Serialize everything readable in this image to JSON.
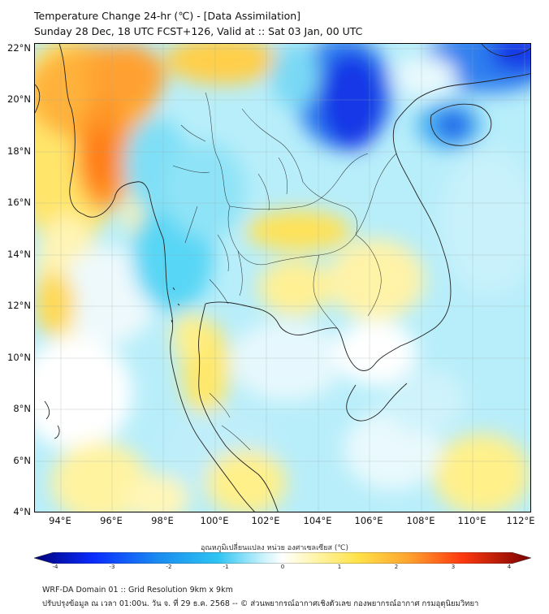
{
  "header": {
    "title": "Temperature Change 24-hr (℃) - [Data Assimilation]",
    "subtitle": "Sunday 28 Dec, 18 UTC FCST+126, Valid at :: Sat 03 Jan, 00 UTC"
  },
  "axes": {
    "lat_labels": [
      "22°N",
      "20°N",
      "18°N",
      "16°N",
      "14°N",
      "12°N",
      "10°N",
      "8°N",
      "6°N",
      "4°N"
    ],
    "lon_labels": [
      "94°E",
      "96°E",
      "98°E",
      "100°E",
      "102°E",
      "104°E",
      "106°E",
      "108°E",
      "110°E",
      "112°E"
    ],
    "lat_range": [
      4,
      22.2
    ],
    "lon_range": [
      93,
      112.3
    ]
  },
  "colorbar": {
    "title": "อุณหภูมิเปลี่ยนแปลง หน่วย องศาเซลเซียส (℃)",
    "ticks": [
      "-4",
      "-3",
      "-2",
      "-1",
      "0",
      "1",
      "2",
      "3",
      "4"
    ],
    "range": [
      -4,
      4
    ],
    "colors": {
      "cold_max": "#00007a",
      "cold": "#0a2cff",
      "cool": "#2ec4f2",
      "neutral": "#ffffff",
      "warm": "#ffe24a",
      "hot": "#ff7a10",
      "hot_max": "#7a0000"
    }
  },
  "footer": {
    "line1": "WRF-DA Domain 01 :: Grid Resolution 9km x 9km",
    "line2": "ปรับปรุงข้อมูล ณ เวลา 01:00น. วัน จ. ที่ 29 ธ.ค. 2568 -- © ส่วนพยากรณ์อากาศเชิงตัวเลข กองพยากรณ์อากาศ กรมอุตุนิยมวิทยา"
  }
}
